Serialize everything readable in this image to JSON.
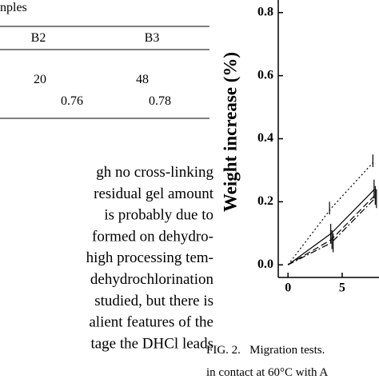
{
  "table": {
    "title_fragment": "nples",
    "columns": [
      "B2",
      "B3"
    ],
    "rows": [
      [
        20,
        48
      ],
      [
        0.76,
        0.78
      ]
    ]
  },
  "paragraph": [
    "gh no cross-linking",
    "residual gel amount",
    "is probably due to",
    "formed on dehydro-",
    "high processing tem-",
    "dehydrochlorination",
    "studied, but there is",
    "alient features of the",
    "tage the DHCl leads"
  ],
  "chart_data": {
    "type": "line",
    "y_label": "Weight increase (%)",
    "x": [
      0,
      4,
      8
    ],
    "series": [
      {
        "color": "#000000",
        "dash": "2,3",
        "values": [
          0,
          0.18,
          0.33
        ],
        "errors": [
          0,
          0.02,
          0.02
        ]
      },
      {
        "color": "#000000",
        "dash": "none",
        "values": [
          0,
          0.1,
          0.24
        ],
        "errors": [
          0,
          0.03,
          0.03
        ]
      },
      {
        "color": "#000000",
        "dash": "8,4",
        "values": [
          0,
          0.08,
          0.22
        ],
        "errors": [
          0,
          0.03,
          0.03
        ]
      },
      {
        "color": "#000000",
        "dash": "8,3,2,3",
        "values": [
          0,
          0.07,
          0.21
        ],
        "errors": [
          0,
          0.03,
          0.03
        ]
      }
    ],
    "xlim": [
      -0.9,
      8.4
    ],
    "ylim": [
      -0.04,
      0.84
    ],
    "xticks": [
      0,
      5
    ],
    "yticks": [
      {
        "value": 0,
        "label": "0.0"
      },
      0.2,
      0.4,
      0.6,
      0.8
    ]
  },
  "caption": [
    "FIG. 2.   Migration tests.",
    "in contact at 60°C with A"
  ]
}
